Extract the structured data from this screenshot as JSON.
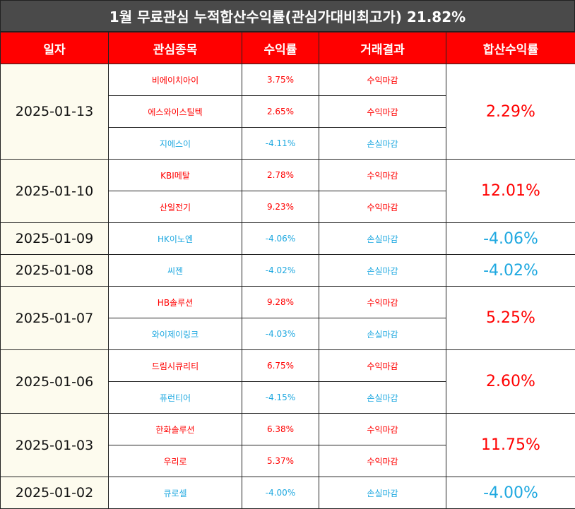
{
  "title": "1월 무료관심 누적합산수익률(관심가대비최고가) 21.82%",
  "headers": {
    "date": "일자",
    "stock": "관심종목",
    "return": "수익률",
    "result": "거래결과",
    "total": "합산수익률"
  },
  "colors": {
    "header_bg": "#ff0000",
    "title_bg": "#4a4a4a",
    "date_bg": "#fdfbee",
    "positive": "#ff0000",
    "negative": "#1ea8e0"
  },
  "groups": [
    {
      "date": "2025-01-13",
      "total": "2.29%",
      "total_sign": "pos",
      "rows": [
        {
          "stock": "비에이치아이",
          "return": "3.75%",
          "result": "수익마감",
          "sign": "pos"
        },
        {
          "stock": "에스와이스틸텍",
          "return": "2.65%",
          "result": "수익마감",
          "sign": "pos"
        },
        {
          "stock": "지에스이",
          "return": "-4.11%",
          "result": "손실마감",
          "sign": "neg"
        }
      ]
    },
    {
      "date": "2025-01-10",
      "total": "12.01%",
      "total_sign": "pos",
      "rows": [
        {
          "stock": "KBI메탈",
          "return": "2.78%",
          "result": "수익마감",
          "sign": "pos"
        },
        {
          "stock": "산일전기",
          "return": "9.23%",
          "result": "수익마감",
          "sign": "pos"
        }
      ]
    },
    {
      "date": "2025-01-09",
      "total": "-4.06%",
      "total_sign": "neg",
      "rows": [
        {
          "stock": "HK이노엔",
          "return": "-4.06%",
          "result": "손실마감",
          "sign": "neg"
        }
      ]
    },
    {
      "date": "2025-01-08",
      "total": "-4.02%",
      "total_sign": "neg",
      "rows": [
        {
          "stock": "씨젠",
          "return": "-4.02%",
          "result": "손실마감",
          "sign": "neg"
        }
      ]
    },
    {
      "date": "2025-01-07",
      "total": "5.25%",
      "total_sign": "pos",
      "rows": [
        {
          "stock": "HB솔루션",
          "return": "9.28%",
          "result": "수익마감",
          "sign": "pos"
        },
        {
          "stock": "와이제이링크",
          "return": "-4.03%",
          "result": "손실마감",
          "sign": "neg"
        }
      ]
    },
    {
      "date": "2025-01-06",
      "total": "2.60%",
      "total_sign": "pos",
      "rows": [
        {
          "stock": "드림시큐리티",
          "return": "6.75%",
          "result": "수익마감",
          "sign": "pos"
        },
        {
          "stock": "퓨런티어",
          "return": "-4.15%",
          "result": "손실마감",
          "sign": "neg"
        }
      ]
    },
    {
      "date": "2025-01-03",
      "total": "11.75%",
      "total_sign": "pos",
      "rows": [
        {
          "stock": "한화솔루션",
          "return": "6.38%",
          "result": "수익마감",
          "sign": "pos"
        },
        {
          "stock": "우리로",
          "return": "5.37%",
          "result": "수익마감",
          "sign": "pos"
        }
      ]
    },
    {
      "date": "2025-01-02",
      "total": "-4.00%",
      "total_sign": "neg",
      "rows": [
        {
          "stock": "큐로셀",
          "return": "-4.00%",
          "result": "손실마감",
          "sign": "neg"
        }
      ]
    }
  ]
}
